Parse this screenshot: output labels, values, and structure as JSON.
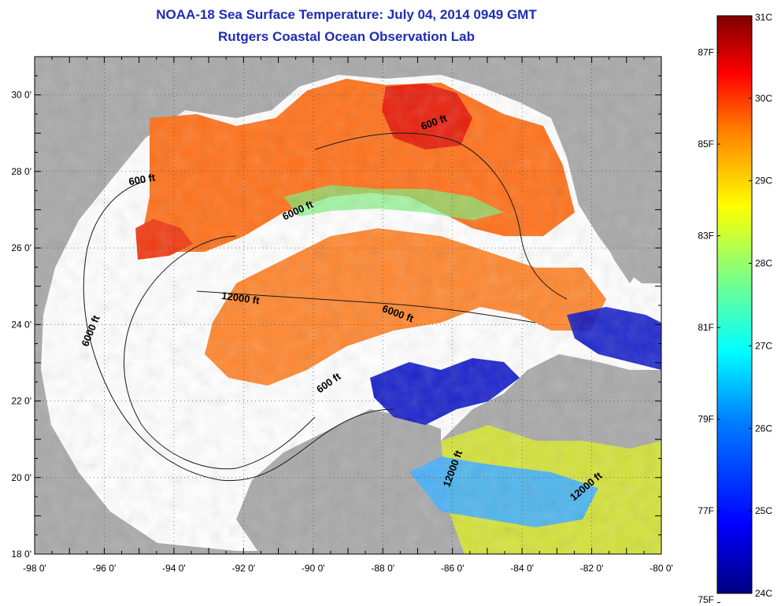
{
  "title": {
    "line1": "NOAA-18 Sea Surface Temperature:  July 04, 2014 0949 GMT",
    "line2": "Rutgers Coastal Ocean Observation Lab"
  },
  "map": {
    "lon_range": [
      -98,
      -80
    ],
    "lat_range": [
      18,
      31
    ],
    "x_ticks": [
      {
        "v": -98,
        "label": "-98 0'"
      },
      {
        "v": -96,
        "label": "-96 0'"
      },
      {
        "v": -94,
        "label": "-94 0'"
      },
      {
        "v": -92,
        "label": "-92 0'"
      },
      {
        "v": -90,
        "label": "-90 0'"
      },
      {
        "v": -88,
        "label": "-88 0'"
      },
      {
        "v": -86,
        "label": "-86 0'"
      },
      {
        "v": -84,
        "label": "-84 0'"
      },
      {
        "v": -82,
        "label": "-82 0'"
      },
      {
        "v": -80,
        "label": "-80 0'"
      }
    ],
    "y_ticks": [
      {
        "v": 18,
        "label": "18 0'"
      },
      {
        "v": 20,
        "label": "20 0'"
      },
      {
        "v": 22,
        "label": "22 0'"
      },
      {
        "v": 24,
        "label": "24 0'"
      },
      {
        "v": 26,
        "label": "26 0'"
      },
      {
        "v": 28,
        "label": "28 0'"
      },
      {
        "v": 30,
        "label": "30 0'"
      }
    ],
    "contour_labels": [
      {
        "text": "600 ft",
        "lon": -94.9,
        "lat": 27.7,
        "rot": -10
      },
      {
        "text": "600 ft",
        "lon": -86.5,
        "lat": 29.2,
        "rot": -20
      },
      {
        "text": "6000 ft",
        "lon": -90.4,
        "lat": 26.9,
        "rot": -25
      },
      {
        "text": "12000 ft",
        "lon": -92.1,
        "lat": 24.6,
        "rot": 8
      },
      {
        "text": "6000 ft",
        "lon": -87.6,
        "lat": 24.2,
        "rot": 20
      },
      {
        "text": "6000 ft",
        "lon": -96.3,
        "lat": 23.8,
        "rot": -68
      },
      {
        "text": "600 ft",
        "lon": -89.5,
        "lat": 22.4,
        "rot": -35
      },
      {
        "text": "12000 ft",
        "lon": -85.9,
        "lat": 20.2,
        "rot": -70
      },
      {
        "text": "12000 ft",
        "lon": -82.1,
        "lat": 19.7,
        "rot": -40
      }
    ],
    "colors": {
      "land": "#a9a9a9",
      "cloud": "#ffffff"
    }
  },
  "colorbar": {
    "celsius": [
      {
        "v": 31,
        "label": "31C"
      },
      {
        "v": 30,
        "label": "30C"
      },
      {
        "v": 29,
        "label": "29C"
      },
      {
        "v": 28,
        "label": "28C"
      },
      {
        "v": 27,
        "label": "27C"
      },
      {
        "v": 26,
        "label": "26C"
      },
      {
        "v": 25,
        "label": "25C"
      },
      {
        "v": 24,
        "label": "24C"
      }
    ],
    "fahrenheit": [
      {
        "v": 87,
        "label": "87F"
      },
      {
        "v": 85,
        "label": "85F"
      },
      {
        "v": 83,
        "label": "83F"
      },
      {
        "v": 81,
        "label": "81F"
      },
      {
        "v": 79,
        "label": "79F"
      },
      {
        "v": 77,
        "label": "77F"
      },
      {
        "v": 75,
        "label": "75F"
      }
    ],
    "range_c": [
      24,
      31
    ],
    "stops": [
      "#00007f",
      "#0000ff",
      "#0080ff",
      "#00ffff",
      "#80ff80",
      "#ffff00",
      "#ff8000",
      "#ff0000",
      "#7f0000"
    ]
  }
}
